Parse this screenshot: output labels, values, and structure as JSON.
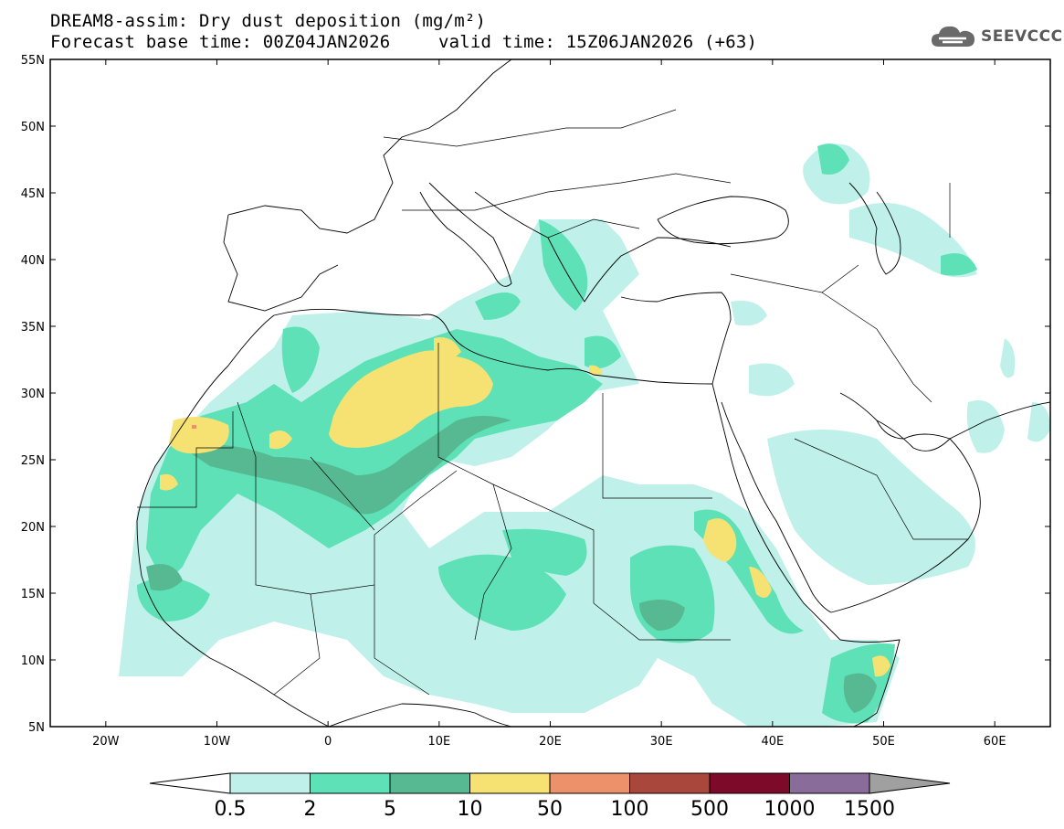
{
  "title": {
    "line1": "DREAM8-assim: Dry dust deposition (mg/m²)",
    "line2_left": "Forecast base time: 00Z04JAN2026",
    "line2_right": "valid time: 15Z06JAN2026 (+63)"
  },
  "logo": {
    "text": "SEEVCCC",
    "icon": "cloud-icon"
  },
  "axes": {
    "lat_labels": [
      "55N",
      "50N",
      "45N",
      "40N",
      "35N",
      "30N",
      "25N",
      "20N",
      "15N",
      "10N",
      "5N"
    ],
    "lat_values": [
      55,
      50,
      45,
      40,
      35,
      30,
      25,
      20,
      15,
      10,
      5
    ],
    "lon_labels": [
      "20W",
      "10W",
      "0",
      "10E",
      "20E",
      "30E",
      "40E",
      "50E",
      "60E"
    ],
    "lon_values": [
      -20,
      -10,
      0,
      10,
      20,
      30,
      40,
      50,
      60
    ],
    "lon_range": [
      -25,
      65
    ],
    "lat_range": [
      5,
      55
    ]
  },
  "colorbar": {
    "labels": [
      "0.5",
      "2",
      "5",
      "10",
      "50",
      "100",
      "500",
      "1000",
      "1500"
    ],
    "colors": [
      "#bff1ea",
      "#5ee1b7",
      "#56b992",
      "#f5e272",
      "#ec916a",
      "#a9473d",
      "#7c0a28",
      "#8a6c9a"
    ],
    "under_color": "#ffffff",
    "over_color": "#a0a0a0"
  },
  "legend_levels": [
    "0.5",
    "2",
    "5",
    "10"
  ]
}
